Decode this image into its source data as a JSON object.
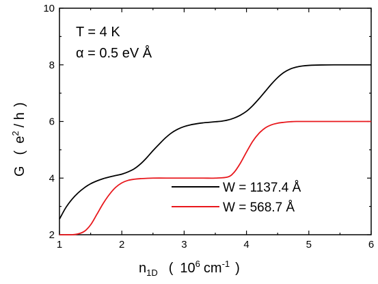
{
  "chart_data": {
    "type": "line",
    "title": "",
    "xlabel": "n1D ( 10^6 cm^-1 )",
    "xlabel_parts": {
      "main": "n",
      "main_sub": "1D",
      "open": "(",
      "unit_base": "10",
      "unit_exp": "6",
      "unit_rest": "cm",
      "unit_rest_exp": "-1",
      "close": ")"
    },
    "ylabel": "G ( e^2 / h )",
    "ylabel_parts": {
      "main": "G",
      "open": "(",
      "unit_base": "e",
      "unit_exp": "2",
      "unit_rest": "/ h",
      "close": ")"
    },
    "xlim": [
      1,
      6
    ],
    "ylim": [
      2,
      10
    ],
    "x_ticks": [
      "1",
      "2",
      "3",
      "4",
      "5",
      "6"
    ],
    "y_ticks": [
      "2",
      "4",
      "6",
      "8",
      "10"
    ],
    "grid": false,
    "legend_position": "bottom-right",
    "annotations": [
      "T = 4 K",
      "α = 0.5 eV  Å"
    ],
    "series": [
      {
        "name": "W = 1137.4  Å",
        "color": "#000000",
        "x": [
          1.0,
          1.1,
          1.2,
          1.3,
          1.4,
          1.5,
          1.6,
          1.7,
          1.8,
          1.9,
          2.0,
          2.1,
          2.2,
          2.3,
          2.4,
          2.5,
          2.6,
          2.7,
          2.8,
          2.9,
          3.0,
          3.1,
          3.2,
          3.3,
          3.4,
          3.5,
          3.6,
          3.7,
          3.8,
          3.9,
          4.0,
          4.1,
          4.2,
          4.3,
          4.4,
          4.5,
          4.6,
          4.7,
          4.8,
          4.9,
          5.0,
          5.2,
          5.4,
          5.6,
          5.8,
          6.0
        ],
        "y": [
          2.55,
          2.95,
          3.25,
          3.48,
          3.66,
          3.8,
          3.9,
          3.98,
          4.04,
          4.09,
          4.14,
          4.22,
          4.33,
          4.5,
          4.72,
          4.97,
          5.2,
          5.42,
          5.6,
          5.73,
          5.82,
          5.88,
          5.92,
          5.95,
          5.97,
          5.99,
          6.01,
          6.05,
          6.12,
          6.22,
          6.36,
          6.56,
          6.8,
          7.06,
          7.32,
          7.55,
          7.73,
          7.85,
          7.92,
          7.96,
          7.98,
          7.995,
          8.0,
          8.0,
          8.0,
          8.0
        ]
      },
      {
        "name": "W = 568.7  Å",
        "color": "#e8171c",
        "x": [
          1.0,
          1.2,
          1.3,
          1.4,
          1.5,
          1.6,
          1.7,
          1.8,
          1.9,
          2.0,
          2.1,
          2.2,
          2.3,
          2.5,
          2.8,
          3.0,
          3.3,
          3.5,
          3.7,
          3.8,
          3.9,
          4.0,
          4.1,
          4.2,
          4.3,
          4.4,
          4.5,
          4.6,
          4.7,
          4.8,
          5.0,
          5.5,
          6.0
        ],
        "y": [
          2.0,
          2.0,
          2.03,
          2.12,
          2.35,
          2.72,
          3.1,
          3.42,
          3.67,
          3.83,
          3.92,
          3.96,
          3.98,
          4.0,
          4.0,
          4.0,
          4.0,
          4.0,
          4.04,
          4.2,
          4.52,
          4.92,
          5.3,
          5.58,
          5.77,
          5.88,
          5.94,
          5.97,
          5.99,
          6.0,
          6.0,
          6.0,
          6.0
        ]
      }
    ]
  }
}
